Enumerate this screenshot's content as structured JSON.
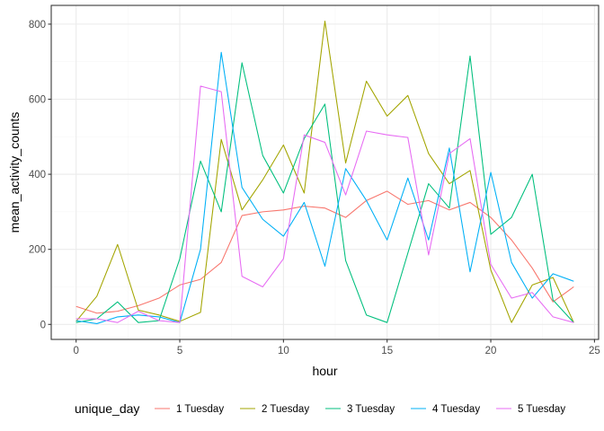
{
  "chart_data": {
    "type": "line",
    "xlabel": "hour",
    "ylabel": "mean_activity_counts",
    "xlim": [
      -1.2,
      25.2
    ],
    "ylim": [
      -40,
      850
    ],
    "x_ticks": [
      0,
      5,
      10,
      15,
      20,
      25
    ],
    "y_ticks": [
      0,
      200,
      400,
      600,
      800
    ],
    "grid": true,
    "legend": {
      "title": "unique_day",
      "position": "bottom"
    },
    "x": [
      0,
      1,
      2,
      3,
      4,
      5,
      6,
      7,
      8,
      9,
      10,
      11,
      12,
      13,
      14,
      15,
      16,
      17,
      18,
      19,
      20,
      21,
      22,
      23,
      24
    ],
    "series": [
      {
        "name": "1 Tuesday",
        "color": "#F8766D",
        "values": [
          48,
          30,
          35,
          50,
          70,
          105,
          120,
          165,
          290,
          300,
          305,
          315,
          310,
          285,
          330,
          355,
          320,
          330,
          305,
          325,
          285,
          225,
          150,
          60,
          100
        ]
      },
      {
        "name": "2 Tuesday",
        "color": "#A3A500",
        "values": [
          8,
          75,
          213,
          38,
          25,
          8,
          32,
          493,
          305,
          385,
          478,
          350,
          808,
          430,
          648,
          555,
          610,
          455,
          375,
          410,
          145,
          5,
          105,
          125,
          5
        ]
      },
      {
        "name": "3 Tuesday",
        "color": "#00BF7D",
        "values": [
          5,
          15,
          60,
          5,
          10,
          175,
          435,
          300,
          697,
          450,
          350,
          495,
          587,
          170,
          25,
          5,
          190,
          375,
          310,
          715,
          240,
          285,
          400,
          65,
          5
        ]
      },
      {
        "name": "4 Tuesday",
        "color": "#00B0F6",
        "values": [
          10,
          2,
          20,
          25,
          20,
          5,
          200,
          725,
          365,
          280,
          235,
          325,
          155,
          415,
          330,
          225,
          390,
          225,
          470,
          140,
          405,
          165,
          70,
          135,
          115
        ]
      },
      {
        "name": "5 Tuesday",
        "color": "#E76BF3",
        "values": [
          15,
          15,
          5,
          35,
          10,
          5,
          635,
          620,
          128,
          100,
          175,
          505,
          485,
          345,
          515,
          505,
          498,
          185,
          455,
          495,
          160,
          70,
          85,
          20,
          5
        ]
      }
    ]
  }
}
